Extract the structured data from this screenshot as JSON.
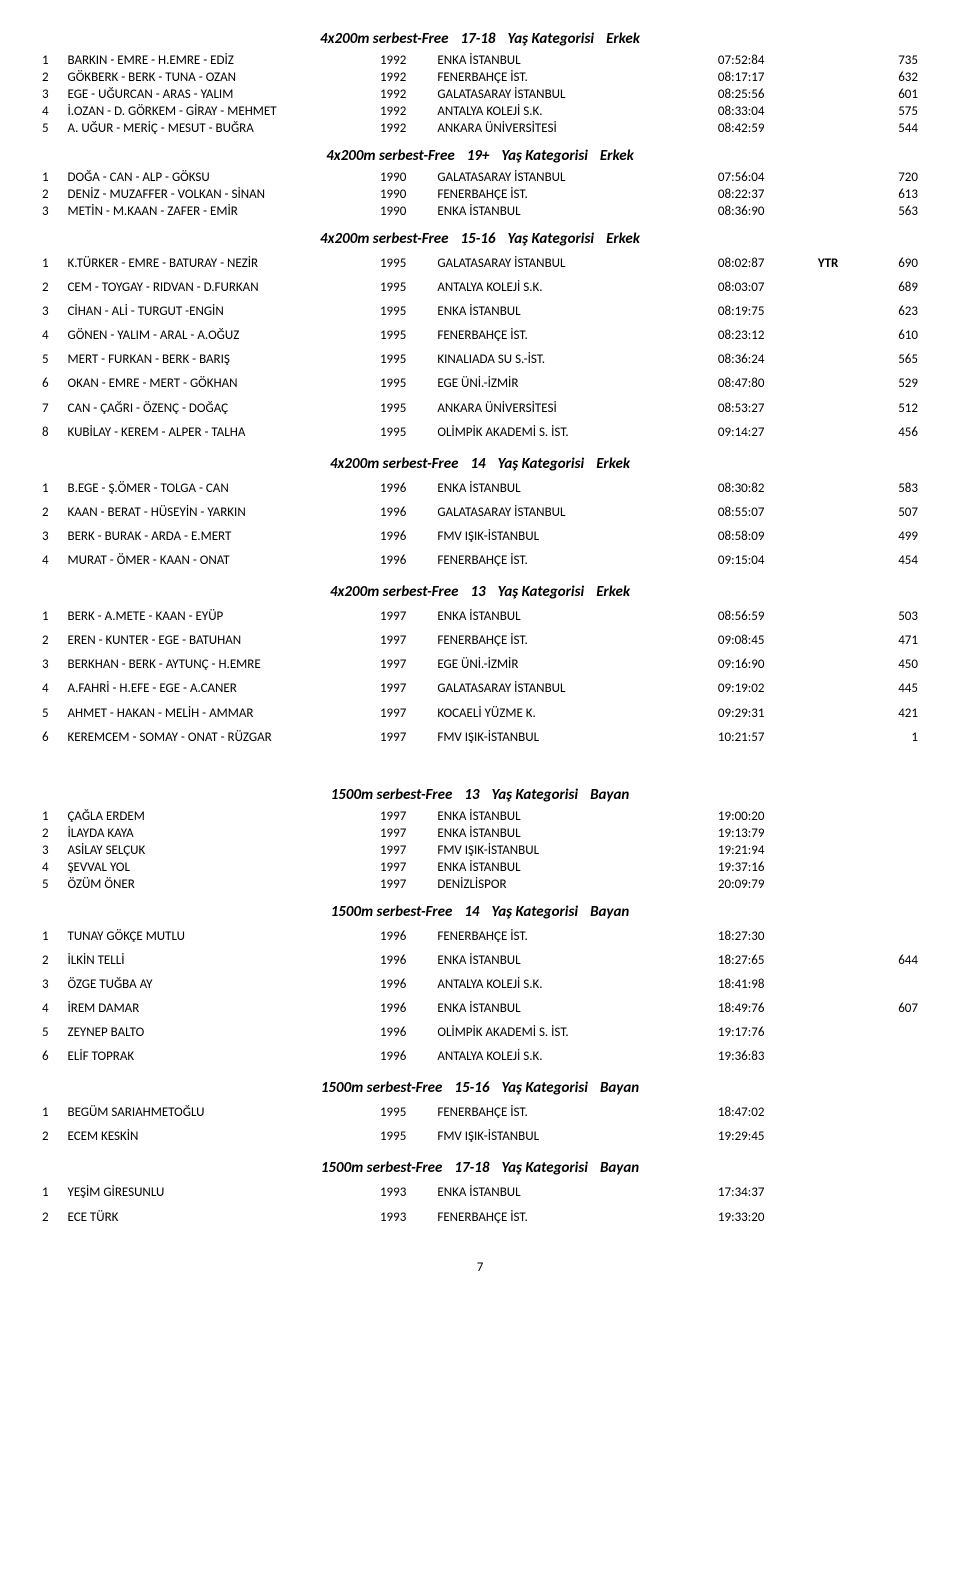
{
  "page_number": "7",
  "sections": [
    {
      "title_parts": [
        "4x200m serbest-Free",
        "17-18",
        "Yaş Kategorisi",
        "Erkek"
      ],
      "rows": [
        {
          "rank": "1",
          "name": "BARKIN - EMRE - H.EMRE - EDİZ",
          "year": "1992",
          "club": "ENKA İSTANBUL",
          "time": "07:52:84",
          "ytr": "",
          "pts": "735"
        },
        {
          "rank": "2",
          "name": "GÖKBERK - BERK - TUNA - OZAN",
          "year": "1992",
          "club": "FENERBAHÇE İST.",
          "time": "08:17:17",
          "ytr": "",
          "pts": "632"
        },
        {
          "rank": "3",
          "name": "EGE - UĞURCAN - ARAS - YALIM",
          "year": "1992",
          "club": "GALATASARAY İSTANBUL",
          "time": "08:25:56",
          "ytr": "",
          "pts": "601"
        },
        {
          "rank": "4",
          "name": "İ.OZAN - D. GÖRKEM - GİRAY - MEHMET",
          "year": "1992",
          "club": "ANTALYA KOLEJİ S.K.",
          "time": "08:33:04",
          "ytr": "",
          "pts": "575"
        },
        {
          "rank": "5",
          "name": "A. UĞUR - MERİÇ - MESUT - BUĞRA",
          "year": "1992",
          "club": "ANKARA ÜNİVERSİTESİ",
          "time": "08:42:59",
          "ytr": "",
          "pts": "544"
        }
      ]
    },
    {
      "title_parts": [
        "4x200m serbest-Free",
        "19+",
        "Yaş Kategorisi",
        "Erkek"
      ],
      "rows": [
        {
          "rank": "1",
          "name": "DOĞA - CAN - ALP - GÖKSU",
          "year": "1990",
          "club": "GALATASARAY İSTANBUL",
          "time": "07:56:04",
          "ytr": "",
          "pts": "720"
        },
        {
          "rank": "2",
          "name": "DENİZ - MUZAFFER - VOLKAN - SİNAN",
          "year": "1990",
          "club": "FENERBAHÇE İST.",
          "time": "08:22:37",
          "ytr": "",
          "pts": "613"
        },
        {
          "rank": "3",
          "name": "METİN - M.KAAN - ZAFER - EMİR",
          "year": "1990",
          "club": "ENKA İSTANBUL",
          "time": "08:36:90",
          "ytr": "",
          "pts": "563"
        }
      ]
    },
    {
      "title_parts": [
        "4x200m serbest-Free",
        "15-16",
        "Yaş Kategorisi",
        "Erkek"
      ],
      "spaced": true,
      "rows": [
        {
          "rank": "1",
          "name": "K.TÜRKER - EMRE - BATURAY - NEZİR",
          "year": "1995",
          "club": "GALATASARAY İSTANBUL",
          "time": "08:02:87",
          "ytr": "YTR",
          "pts": "690"
        },
        {
          "rank": "2",
          "name": "CEM - TOYGAY - RIDVAN - D.FURKAN",
          "year": "1995",
          "club": "ANTALYA KOLEJİ S.K.",
          "time": "08:03:07",
          "ytr": "",
          "pts": "689"
        },
        {
          "rank": "3",
          "name": "CİHAN - ALİ - TURGUT -ENGİN",
          "year": "1995",
          "club": "ENKA İSTANBUL",
          "time": "08:19:75",
          "ytr": "",
          "pts": "623"
        },
        {
          "rank": "4",
          "name": "GÖNEN - YALIM - ARAL - A.OĞUZ",
          "year": "1995",
          "club": "FENERBAHÇE İST.",
          "time": "08:23:12",
          "ytr": "",
          "pts": "610"
        },
        {
          "rank": "5",
          "name": "MERT - FURKAN - BERK - BARIŞ",
          "year": "1995",
          "club": "KINALIADA SU S.-İST.",
          "time": "08:36:24",
          "ytr": "",
          "pts": "565"
        },
        {
          "rank": "6",
          "name": "OKAN - EMRE - MERT - GÖKHAN",
          "year": "1995",
          "club": "EGE ÜNİ.-İZMİR",
          "time": "08:47:80",
          "ytr": "",
          "pts": "529"
        },
        {
          "rank": "7",
          "name": "CAN - ÇAĞRI - ÖZENÇ - DOĞAÇ",
          "year": "1995",
          "club": "ANKARA ÜNİVERSİTESİ",
          "time": "08:53:27",
          "ytr": "",
          "pts": "512"
        },
        {
          "rank": "8",
          "name": "KUBİLAY - KEREM - ALPER - TALHA",
          "year": "1995",
          "club": "OLİMPİK AKADEMİ S. İST.",
          "time": "09:14:27",
          "ytr": "",
          "pts": "456"
        }
      ]
    },
    {
      "title_parts": [
        "4x200m serbest-Free",
        "14",
        "Yaş Kategorisi",
        "Erkek"
      ],
      "spaced": true,
      "rows": [
        {
          "rank": "1",
          "name": "B.EGE - Ş.ÖMER - TOLGA - CAN",
          "year": "1996",
          "club": "ENKA İSTANBUL",
          "time": "08:30:82",
          "ytr": "",
          "pts": "583"
        },
        {
          "rank": "2",
          "name": "KAAN - BERAT - HÜSEYİN - YARKIN",
          "year": "1996",
          "club": "GALATASARAY İSTANBUL",
          "time": "08:55:07",
          "ytr": "",
          "pts": "507"
        },
        {
          "rank": "3",
          "name": "BERK - BURAK - ARDA - E.MERT",
          "year": "1996",
          "club": "FMV IŞIK-İSTANBUL",
          "time": "08:58:09",
          "ytr": "",
          "pts": "499"
        },
        {
          "rank": "4",
          "name": "MURAT - ÖMER - KAAN - ONAT",
          "year": "1996",
          "club": "FENERBAHÇE İST.",
          "time": "09:15:04",
          "ytr": "",
          "pts": "454"
        }
      ]
    },
    {
      "title_parts": [
        "4x200m serbest-Free",
        "13",
        "Yaş Kategorisi",
        "Erkek"
      ],
      "spaced": true,
      "rows": [
        {
          "rank": "1",
          "name": "BERK - A.METE - KAAN - EYÜP",
          "year": "1997",
          "club": "ENKA İSTANBUL",
          "time": "08:56:59",
          "ytr": "",
          "pts": "503"
        },
        {
          "rank": "2",
          "name": "EREN - KUNTER - EGE - BATUHAN",
          "year": "1997",
          "club": "FENERBAHÇE İST.",
          "time": "09:08:45",
          "ytr": "",
          "pts": "471"
        },
        {
          "rank": "3",
          "name": "BERKHAN - BERK - AYTUNÇ - H.EMRE",
          "year": "1997",
          "club": "EGE ÜNİ.-İZMİR",
          "time": "09:16:90",
          "ytr": "",
          "pts": "450"
        },
        {
          "rank": "4",
          "name": "A.FAHRİ - H.EFE - EGE - A.CANER",
          "year": "1997",
          "club": "GALATASARAY İSTANBUL",
          "time": "09:19:02",
          "ytr": "",
          "pts": "445"
        },
        {
          "rank": "5",
          "name": "AHMET - HAKAN - MELİH - AMMAR",
          "year": "1997",
          "club": "KOCAELİ YÜZME K.",
          "time": "09:29:31",
          "ytr": "",
          "pts": "421"
        },
        {
          "rank": "6",
          "name": "KEREMCEM - SOMAY - ONAT - RÜZGAR",
          "year": "1997",
          "club": "FMV IŞIK-İSTANBUL",
          "time": "10:21:57",
          "ytr": "",
          "pts": "1"
        }
      ]
    },
    {
      "title_parts": [
        "1500m serbest-Free",
        "13",
        "Yaş Kategorisi",
        "Bayan"
      ],
      "pre_gap": true,
      "rows": [
        {
          "rank": "1",
          "name": "ÇAĞLA ERDEM",
          "year": "1997",
          "club": "ENKA İSTANBUL",
          "time": "19:00:20",
          "ytr": "",
          "pts": ""
        },
        {
          "rank": "2",
          "name": "İLAYDA KAYA",
          "year": "1997",
          "club": "ENKA İSTANBUL",
          "time": "19:13:79",
          "ytr": "",
          "pts": ""
        },
        {
          "rank": "3",
          "name": "ASİLAY SELÇUK",
          "year": "1997",
          "club": "FMV IŞIK-İSTANBUL",
          "time": "19:21:94",
          "ytr": "",
          "pts": ""
        },
        {
          "rank": "4",
          "name": "ŞEVVAL YOL",
          "year": "1997",
          "club": "ENKA İSTANBUL",
          "time": "19:37:16",
          "ytr": "",
          "pts": ""
        },
        {
          "rank": "5",
          "name": "ÖZÜM ÖNER",
          "year": "1997",
          "club": "DENİZLİSPOR",
          "time": "20:09:79",
          "ytr": "",
          "pts": ""
        }
      ]
    },
    {
      "title_parts": [
        "1500m serbest-Free",
        "14",
        "Yaş Kategorisi",
        "Bayan"
      ],
      "spaced": true,
      "rows": [
        {
          "rank": "1",
          "name": "TUNAY GÖKÇE MUTLU",
          "year": "1996",
          "club": "FENERBAHÇE İST.",
          "time": "18:27:30",
          "ytr": "",
          "pts": ""
        },
        {
          "rank": "2",
          "name": "İLKİN TELLİ",
          "year": "1996",
          "club": "ENKA İSTANBUL",
          "time": "18:27:65",
          "ytr": "",
          "pts": "644"
        },
        {
          "rank": "3",
          "name": "ÖZGE TUĞBA AY",
          "year": "1996",
          "club": "ANTALYA KOLEJİ S.K.",
          "time": "18:41:98",
          "ytr": "",
          "pts": ""
        },
        {
          "rank": "4",
          "name": "İREM DAMAR",
          "year": "1996",
          "club": "ENKA İSTANBUL",
          "time": "18:49:76",
          "ytr": "",
          "pts": "607"
        },
        {
          "rank": "5",
          "name": "ZEYNEP BALTO",
          "year": "1996",
          "club": "OLİMPİK AKADEMİ S. İST.",
          "time": "19:17:76",
          "ytr": "",
          "pts": ""
        },
        {
          "rank": "6",
          "name": "ELİF TOPRAK",
          "year": "1996",
          "club": "ANTALYA KOLEJİ S.K.",
          "time": "19:36:83",
          "ytr": "",
          "pts": ""
        }
      ]
    },
    {
      "title_parts": [
        "1500m serbest-Free",
        "15-16",
        "Yaş Kategorisi",
        "Bayan"
      ],
      "spaced": true,
      "rows": [
        {
          "rank": "1",
          "name": "BEGÜM SARIAHMETOĞLU",
          "year": "1995",
          "club": "FENERBAHÇE İST.",
          "time": "18:47:02",
          "ytr": "",
          "pts": ""
        },
        {
          "rank": "2",
          "name": "ECEM KESKİN",
          "year": "1995",
          "club": "FMV IŞIK-İSTANBUL",
          "time": "19:29:45",
          "ytr": "",
          "pts": ""
        }
      ]
    },
    {
      "title_parts": [
        "1500m serbest-Free",
        "17-18",
        "Yaş Kategorisi",
        "Bayan"
      ],
      "spaced": true,
      "rows": [
        {
          "rank": "1",
          "name": "YEŞİM GİRESUNLU",
          "year": "1993",
          "club": "ENKA İSTANBUL",
          "time": "17:34:37",
          "ytr": "",
          "pts": ""
        },
        {
          "rank": "2",
          "name": "ECE TÜRK",
          "year": "1993",
          "club": "FENERBAHÇE İST.",
          "time": "19:33:20",
          "ytr": "",
          "pts": ""
        }
      ]
    }
  ]
}
